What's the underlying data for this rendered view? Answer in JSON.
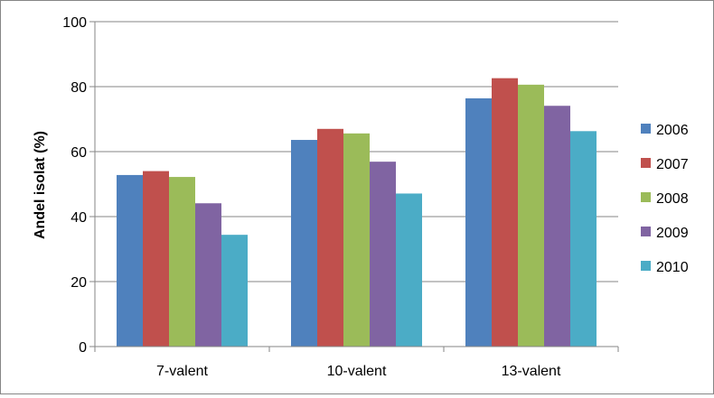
{
  "chart_data": {
    "type": "bar",
    "title": "",
    "xlabel": "",
    "ylabel": "Andel isolat (%)",
    "ylim": [
      0,
      100
    ],
    "yticks": [
      0,
      20,
      40,
      60,
      80,
      100
    ],
    "grid": true,
    "legend_position": "right",
    "categories": [
      "7-valent",
      "10-valent",
      "13-valent"
    ],
    "series": [
      {
        "name": "2006",
        "color": "#4F81BD",
        "values": [
          52.8,
          63.6,
          76.4
        ]
      },
      {
        "name": "2007",
        "color": "#C0504D",
        "values": [
          54.0,
          67.0,
          82.6
        ]
      },
      {
        "name": "2008",
        "color": "#9BBB59",
        "values": [
          52.2,
          65.6,
          80.6
        ]
      },
      {
        "name": "2009",
        "color": "#8064A2",
        "values": [
          44.1,
          56.9,
          74.1
        ]
      },
      {
        "name": "2010",
        "color": "#4BACC6",
        "values": [
          34.4,
          47.1,
          66.3
        ]
      }
    ]
  }
}
